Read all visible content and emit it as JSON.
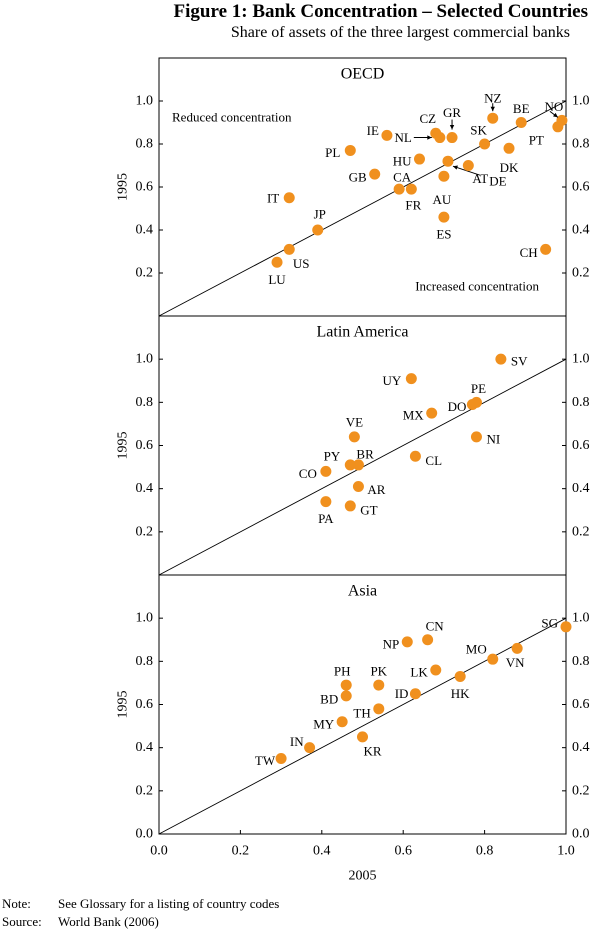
{
  "title": "Figure 1: Bank Concentration – Selected Countries",
  "subtitle": "Share of assets of the three largest commercial banks",
  "note_label": "Note:",
  "note_text": "See Glossary for a listing of country codes",
  "source_label": "Source:",
  "source_text": "World Bank (2006)",
  "colors": {
    "marker": "#f0901e",
    "line": "#000000",
    "frame": "#000000"
  },
  "chart_data": [
    {
      "type": "scatter",
      "title": "OECD",
      "xlabel": "2005",
      "ylabel": "1995",
      "xlim": [
        0,
        1
      ],
      "ylim": [
        0,
        1.2
      ],
      "y_ticks": [
        "0.2",
        "0.4",
        "0.6",
        "0.8",
        "1.0"
      ],
      "reference_line": "y = x",
      "annotations": [
        "Reduced concentration",
        "Increased concentration"
      ],
      "points": [
        {
          "label": "NZ",
          "x": 0.82,
          "y": 0.92
        },
        {
          "label": "NO",
          "x": 0.99,
          "y": 0.91
        },
        {
          "label": "BE",
          "x": 0.89,
          "y": 0.9
        },
        {
          "label": "PT",
          "x": 0.98,
          "y": 0.88
        },
        {
          "label": "GR",
          "x": 0.72,
          "y": 0.83
        },
        {
          "label": "CZ",
          "x": 0.68,
          "y": 0.85
        },
        {
          "label": "NL",
          "x": 0.69,
          "y": 0.83
        },
        {
          "label": "IE",
          "x": 0.56,
          "y": 0.84
        },
        {
          "label": "SK",
          "x": 0.8,
          "y": 0.8
        },
        {
          "label": "DK",
          "x": 0.86,
          "y": 0.78
        },
        {
          "label": "PL",
          "x": 0.47,
          "y": 0.77
        },
        {
          "label": "HU",
          "x": 0.64,
          "y": 0.73
        },
        {
          "label": "DE",
          "x": 0.71,
          "y": 0.72
        },
        {
          "label": "AT",
          "x": 0.76,
          "y": 0.7
        },
        {
          "label": "GB",
          "x": 0.53,
          "y": 0.66
        },
        {
          "label": "AU",
          "x": 0.7,
          "y": 0.65
        },
        {
          "label": "CA",
          "x": 0.59,
          "y": 0.59
        },
        {
          "label": "FR",
          "x": 0.62,
          "y": 0.59
        },
        {
          "label": "IT",
          "x": 0.32,
          "y": 0.55
        },
        {
          "label": "ES",
          "x": 0.7,
          "y": 0.46
        },
        {
          "label": "JP",
          "x": 0.39,
          "y": 0.4
        },
        {
          "label": "US",
          "x": 0.32,
          "y": 0.31
        },
        {
          "label": "LU",
          "x": 0.29,
          "y": 0.25
        },
        {
          "label": "CH",
          "x": 0.95,
          "y": 0.31
        }
      ]
    },
    {
      "type": "scatter",
      "title": "Latin America",
      "xlabel": "2005",
      "ylabel": "1995",
      "xlim": [
        0,
        1
      ],
      "ylim": [
        0,
        1.2
      ],
      "y_ticks": [
        "0.2",
        "0.4",
        "0.6",
        "0.8",
        "1.0"
      ],
      "reference_line": "y = x",
      "points": [
        {
          "label": "SV",
          "x": 0.84,
          "y": 1.0
        },
        {
          "label": "UY",
          "x": 0.62,
          "y": 0.91
        },
        {
          "label": "PE",
          "x": 0.78,
          "y": 0.8
        },
        {
          "label": "DO",
          "x": 0.77,
          "y": 0.79
        },
        {
          "label": "MX",
          "x": 0.67,
          "y": 0.75
        },
        {
          "label": "VE",
          "x": 0.48,
          "y": 0.64
        },
        {
          "label": "NI",
          "x": 0.78,
          "y": 0.64
        },
        {
          "label": "CL",
          "x": 0.63,
          "y": 0.55
        },
        {
          "label": "PY",
          "x": 0.47,
          "y": 0.51
        },
        {
          "label": "BR",
          "x": 0.49,
          "y": 0.51
        },
        {
          "label": "CO",
          "x": 0.41,
          "y": 0.48
        },
        {
          "label": "AR",
          "x": 0.49,
          "y": 0.41
        },
        {
          "label": "PA",
          "x": 0.41,
          "y": 0.34
        },
        {
          "label": "GT",
          "x": 0.47,
          "y": 0.32
        }
      ]
    },
    {
      "type": "scatter",
      "title": "Asia",
      "xlabel": "2005",
      "ylabel": "1995",
      "xlim": [
        0,
        1
      ],
      "ylim": [
        0,
        1.2
      ],
      "x_ticks": [
        "0.0",
        "0.2",
        "0.4",
        "0.6",
        "0.8",
        "1.0"
      ],
      "y_ticks": [
        "0.0",
        "0.2",
        "0.4",
        "0.6",
        "0.8",
        "1.0"
      ],
      "reference_line": "y = x",
      "points": [
        {
          "label": "SG",
          "x": 1.0,
          "y": 0.96
        },
        {
          "label": "CN",
          "x": 0.66,
          "y": 0.9
        },
        {
          "label": "NP",
          "x": 0.61,
          "y": 0.89
        },
        {
          "label": "VN",
          "x": 0.88,
          "y": 0.86
        },
        {
          "label": "MO",
          "x": 0.82,
          "y": 0.81
        },
        {
          "label": "LK",
          "x": 0.68,
          "y": 0.76
        },
        {
          "label": "HK",
          "x": 0.74,
          "y": 0.73
        },
        {
          "label": "PH",
          "x": 0.46,
          "y": 0.69
        },
        {
          "label": "PK",
          "x": 0.54,
          "y": 0.69
        },
        {
          "label": "BD",
          "x": 0.46,
          "y": 0.64
        },
        {
          "label": "ID",
          "x": 0.63,
          "y": 0.65
        },
        {
          "label": "TH",
          "x": 0.54,
          "y": 0.58
        },
        {
          "label": "MY",
          "x": 0.45,
          "y": 0.52
        },
        {
          "label": "KR",
          "x": 0.5,
          "y": 0.45
        },
        {
          "label": "IN",
          "x": 0.37,
          "y": 0.4
        },
        {
          "label": "TW",
          "x": 0.3,
          "y": 0.35
        }
      ]
    }
  ]
}
